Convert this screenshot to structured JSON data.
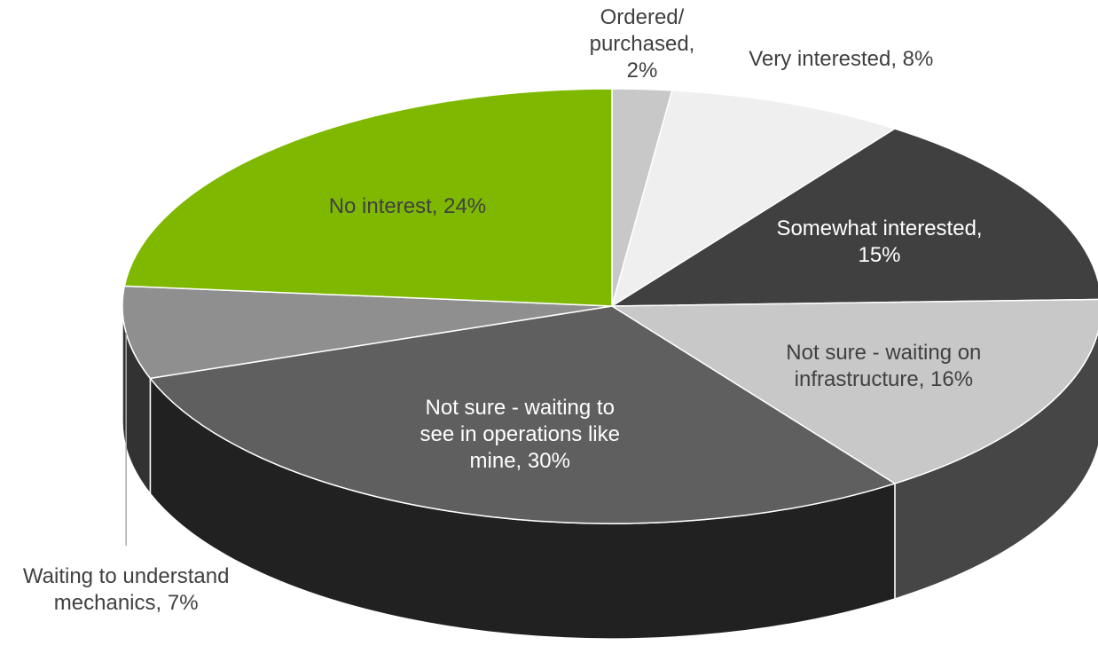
{
  "chart_data": {
    "type": "pie3d",
    "categories": [
      "Ordered/ purchased, 2%",
      "Very interested, 8%",
      "Somewhat interested, 15%",
      "Not sure - waiting on infrastructure, 16%",
      "Not sure - waiting to see in operations like mine, 30%",
      "Waiting to understand mechanics, 7%",
      "No interest, 24%"
    ],
    "values": [
      2,
      8,
      15,
      16,
      30,
      7,
      24
    ],
    "colors": [
      "#c8c8c8",
      "#efefef",
      "#404040",
      "#c8c8c8",
      "#5f5f5f",
      "#8f8f8f",
      "#7fb800"
    ]
  }
}
